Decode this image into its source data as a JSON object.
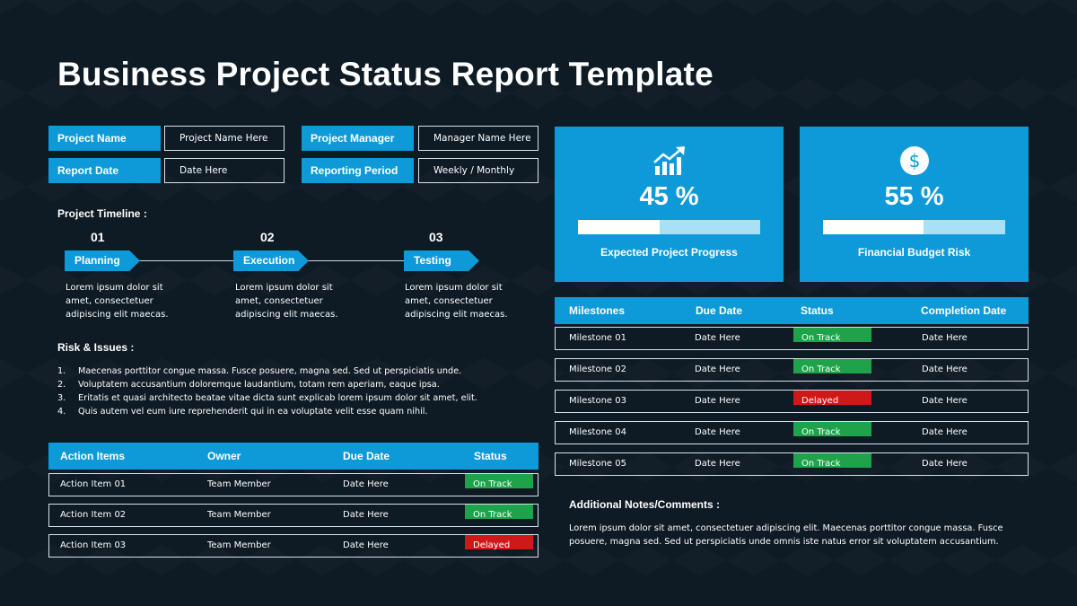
{
  "title": "Business Project Status Report Template",
  "info": {
    "project_name_label": "Project Name",
    "project_name_value": "Project Name Here",
    "report_date_label": "Report Date",
    "report_date_value": "Date Here",
    "project_manager_label": "Project Manager",
    "project_manager_value": "Manager Name Here",
    "reporting_period_label": "Reporting Period",
    "reporting_period_value": "Weekly / Monthly"
  },
  "timeline": {
    "label": "Project Timeline :",
    "steps": [
      {
        "num": "01",
        "name": "Planning",
        "desc": "Lorem ipsum dolor sit amet, consectetuer adipiscing elit maecas."
      },
      {
        "num": "02",
        "name": "Execution",
        "desc": "Lorem ipsum dolor sit amet, consectetuer adipiscing elit maecas."
      },
      {
        "num": "03",
        "name": "Testing",
        "desc": "Lorem ipsum dolor sit amet, consectetuer adipiscing elit maecas."
      }
    ]
  },
  "risks": {
    "label": "Risk & Issues :",
    "items": [
      {
        "n": "1.",
        "text": "Maecenas porttitor congue massa. Fusce posuere, magna sed. Sed ut perspiciatis unde."
      },
      {
        "n": "2.",
        "text": "Voluptatem accusantium doloremque laudantium, totam rem aperiam, eaque ipsa."
      },
      {
        "n": "3.",
        "text": "Eritatis et quasi architecto beatae vitae dicta sunt explicab lorem ipsum dolor sit amet, elit."
      },
      {
        "n": "4.",
        "text": "Quis autem vel eum iure reprehenderit qui in ea voluptate velit esse quam nihil."
      }
    ]
  },
  "actions": {
    "headers": [
      "Action Items",
      "Owner",
      "Due Date",
      "Status"
    ],
    "rows": [
      {
        "item": "Action Item 01",
        "owner": "Team Member",
        "due": "Date Here",
        "status": "On Track"
      },
      {
        "item": "Action Item 02",
        "owner": "Team Member",
        "due": "Date Here",
        "status": "On Track"
      },
      {
        "item": "Action Item 03",
        "owner": "Team Member",
        "due": "Date Here",
        "status": "Delayed"
      }
    ]
  },
  "kpis": [
    {
      "value": "45 %",
      "fraction": 0.45,
      "caption": "Expected Project Progress",
      "icon": "chart-growth-icon"
    },
    {
      "value": "55 %",
      "fraction": 0.55,
      "caption": "Financial Budget Risk",
      "icon": "dollar-icon"
    }
  ],
  "milestones": {
    "headers": [
      "Milestones",
      "Due Date",
      "Status",
      "Completion Date"
    ],
    "rows": [
      {
        "name": "Milestone 01",
        "due": "Date Here",
        "status": "On Track",
        "done": "Date Here"
      },
      {
        "name": "Milestone 02",
        "due": "Date Here",
        "status": "On Track",
        "done": "Date Here"
      },
      {
        "name": "Milestone 03",
        "due": "Date Here",
        "status": "Delayed",
        "done": "Date Here"
      },
      {
        "name": "Milestone 04",
        "due": "Date Here",
        "status": "On Track",
        "done": "Date Here"
      },
      {
        "name": "Milestone 05",
        "due": "Date Here",
        "status": "On Track",
        "done": "Date Here"
      }
    ]
  },
  "notes": {
    "label": "Additional Notes/Comments :",
    "text": "Lorem ipsum dolor sit amet, consectetuer adipiscing elit. Maecenas porttitor congue massa. Fusce posuere, magna sed. Sed ut perspiciatis unde omnis iste natus error sit voluptatem accusantium."
  },
  "colors": {
    "accent": "#0e9ad8",
    "background": "#0e1a24",
    "on_track": "#1ea24a",
    "delayed": "#d01818"
  }
}
